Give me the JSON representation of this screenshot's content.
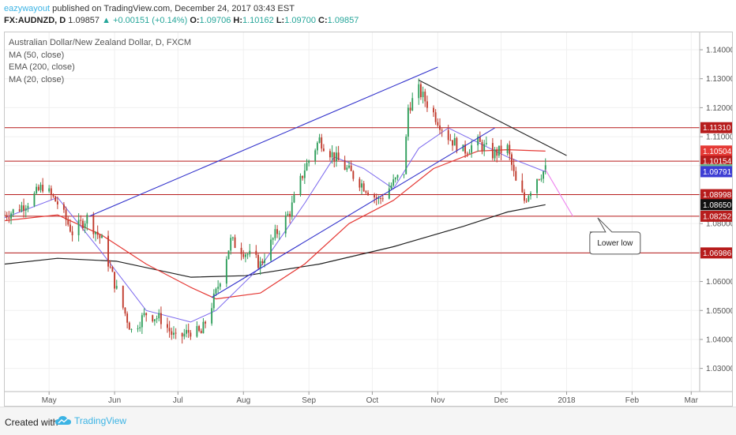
{
  "header": {
    "author": "eazywayout",
    "published_text": "published on TradingView.com, December 24, 2017 03:43 EST",
    "symbol": "FX:AUDNZD, D",
    "last": "1.09857",
    "change": "+0.00151 (+0.14%)",
    "open_label": "O:",
    "open": "1.09706",
    "high_label": "H:",
    "high": "1.10162",
    "low_label": "L:",
    "low": "1.09700",
    "close_label": "C:",
    "close": "1.09857"
  },
  "legend": {
    "title": "Australian Dollar/New Zealand Dollar, D, FXCM",
    "studies": [
      "MA (50, close)",
      "EMA (200, close)",
      "MA (20, close)"
    ]
  },
  "footer": {
    "created_with": "Created with",
    "brand": "TradingView"
  },
  "colors": {
    "up": "#26a69a",
    "down": "#ef5350",
    "candle_up": "#2e9e5b",
    "candle_down": "#c0392b",
    "ma50": "#e53935",
    "ema200": "#222222",
    "ma20": "#7b68ee",
    "channel": "#3333cc",
    "trendline": "#222222",
    "sr_lines": "#b71c1c",
    "projection": "#ee82ee"
  },
  "chart_data": {
    "type": "candlestick",
    "title": "Australian Dollar/New Zealand Dollar, D, FXCM",
    "x_tick_labels": [
      "May",
      "Jun",
      "Jul",
      "Aug",
      "Sep",
      "Oct",
      "Nov",
      "Dec",
      "2018",
      "Feb",
      "Mar"
    ],
    "y_tick_labels": [
      "1.14000",
      "1.13000",
      "1.12000",
      "1.11000",
      "1.10000",
      "1.09000",
      "1.08000",
      "1.07000",
      "1.06000",
      "1.05000",
      "1.04000",
      "1.03000"
    ],
    "ylim": [
      1.022,
      1.146
    ],
    "x_range": [
      "2017-04-10",
      "2018-03-05"
    ],
    "support_resistance_levels": [
      1.1131,
      1.10154,
      1.08998,
      1.08252,
      1.06986
    ],
    "price_tags": [
      {
        "label": "1.11310",
        "value": 1.1131,
        "color": "#b71c1c"
      },
      {
        "label": "1.10504",
        "value": 1.10504,
        "color": "#e53935"
      },
      {
        "label": "1.10154",
        "value": 1.10154,
        "color": "#b71c1c"
      },
      {
        "label": "1.09857",
        "value": 1.09857,
        "color": "#6dbb8c"
      },
      {
        "label": "1.09791",
        "value": 1.09791,
        "color": "#3d3dd4"
      },
      {
        "label": "1.08998",
        "value": 1.08998,
        "color": "#b71c1c"
      },
      {
        "label": "1.08650",
        "value": 1.0865,
        "color": "#111111"
      },
      {
        "label": "1.08252",
        "value": 1.08252,
        "color": "#b71c1c"
      },
      {
        "label": "1.06986",
        "value": 1.06986,
        "color": "#b71c1c"
      }
    ],
    "close_series_keypoints": [
      [
        "2017-04-10",
        1.083
      ],
      [
        "2017-04-15",
        1.0845
      ],
      [
        "2017-04-22",
        1.088
      ],
      [
        "2017-04-28",
        1.093
      ],
      [
        "2017-05-05",
        1.087
      ],
      [
        "2017-05-12",
        1.077
      ],
      [
        "2017-05-19",
        1.082
      ],
      [
        "2017-05-26",
        1.074
      ],
      [
        "2017-06-02",
        1.057
      ],
      [
        "2017-06-09",
        1.043
      ],
      [
        "2017-06-16",
        1.049
      ],
      [
        "2017-06-23",
        1.047
      ],
      [
        "2017-06-30",
        1.04
      ],
      [
        "2017-07-07",
        1.043
      ],
      [
        "2017-07-12",
        1.042
      ],
      [
        "2017-07-19",
        1.056
      ],
      [
        "2017-07-26",
        1.074
      ],
      [
        "2017-08-02",
        1.07
      ],
      [
        "2017-08-09",
        1.066
      ],
      [
        "2017-08-16",
        1.076
      ],
      [
        "2017-08-23",
        1.084
      ],
      [
        "2017-08-30",
        1.099
      ],
      [
        "2017-09-06",
        1.109
      ],
      [
        "2017-09-13",
        1.103
      ],
      [
        "2017-09-20",
        1.098
      ],
      [
        "2017-09-27",
        1.093
      ],
      [
        "2017-10-04",
        1.088
      ],
      [
        "2017-10-11",
        1.094
      ],
      [
        "2017-10-16",
        1.098
      ],
      [
        "2017-10-18",
        1.12
      ],
      [
        "2017-10-23",
        1.126
      ],
      [
        "2017-10-30",
        1.118
      ],
      [
        "2017-11-06",
        1.11
      ],
      [
        "2017-11-13",
        1.105
      ],
      [
        "2017-11-20",
        1.108
      ],
      [
        "2017-11-27",
        1.104
      ],
      [
        "2017-12-04",
        1.106
      ],
      [
        "2017-12-08",
        1.094
      ],
      [
        "2017-12-12",
        1.088
      ],
      [
        "2017-12-18",
        1.096
      ],
      [
        "2017-12-22",
        1.0986
      ]
    ],
    "indicators": {
      "ma50": [
        [
          "2017-04-10",
          1.081
        ],
        [
          "2017-05-05",
          1.083
        ],
        [
          "2017-05-26",
          1.076
        ],
        [
          "2017-06-16",
          1.066
        ],
        [
          "2017-07-07",
          1.058
        ],
        [
          "2017-07-19",
          1.054
        ],
        [
          "2017-08-09",
          1.056
        ],
        [
          "2017-08-30",
          1.066
        ],
        [
          "2017-09-20",
          1.08
        ],
        [
          "2017-10-11",
          1.088
        ],
        [
          "2017-10-30",
          1.099
        ],
        [
          "2017-11-20",
          1.105
        ],
        [
          "2017-12-04",
          1.1055
        ],
        [
          "2017-12-22",
          1.105
        ]
      ],
      "ema200": [
        [
          "2017-04-10",
          1.066
        ],
        [
          "2017-05-05",
          1.068
        ],
        [
          "2017-06-02",
          1.067
        ],
        [
          "2017-07-07",
          1.0615
        ],
        [
          "2017-08-02",
          1.062
        ],
        [
          "2017-09-06",
          1.066
        ],
        [
          "2017-10-11",
          1.072
        ],
        [
          "2017-11-13",
          1.079
        ],
        [
          "2017-12-04",
          1.084
        ],
        [
          "2017-12-22",
          1.0865
        ]
      ],
      "ma20": [
        [
          "2017-04-10",
          1.082
        ],
        [
          "2017-05-05",
          1.089
        ],
        [
          "2017-05-26",
          1.07
        ],
        [
          "2017-06-16",
          1.05
        ],
        [
          "2017-07-07",
          1.046
        ],
        [
          "2017-07-19",
          1.05
        ],
        [
          "2017-08-09",
          1.065
        ],
        [
          "2017-08-30",
          1.087
        ],
        [
          "2017-09-13",
          1.103
        ],
        [
          "2017-09-27",
          1.099
        ],
        [
          "2017-10-11",
          1.092
        ],
        [
          "2017-10-23",
          1.106
        ],
        [
          "2017-11-06",
          1.113
        ],
        [
          "2017-11-20",
          1.108
        ],
        [
          "2017-12-04",
          1.103
        ],
        [
          "2017-12-22",
          1.0979
        ]
      ]
    },
    "annotations": [
      {
        "type": "channel_upper",
        "from": [
          "2017-05-20",
          1.0825
        ],
        "to": [
          "2017-11-01",
          1.134
        ]
      },
      {
        "type": "channel_lower",
        "from": [
          "2017-07-17",
          1.0545
        ],
        "to": [
          "2017-11-28",
          1.113
        ]
      },
      {
        "type": "trendline",
        "from": [
          "2017-10-23",
          1.1295
        ],
        "to": [
          "2018-01-01",
          1.1035
        ]
      },
      {
        "type": "projection",
        "from": [
          "2017-12-22",
          1.0986
        ],
        "to": [
          "2018-01-04",
          1.0825
        ]
      },
      {
        "type": "callout",
        "text": "Lower low",
        "anchor": [
          "2018-01-06",
          1.082
        ]
      }
    ]
  }
}
